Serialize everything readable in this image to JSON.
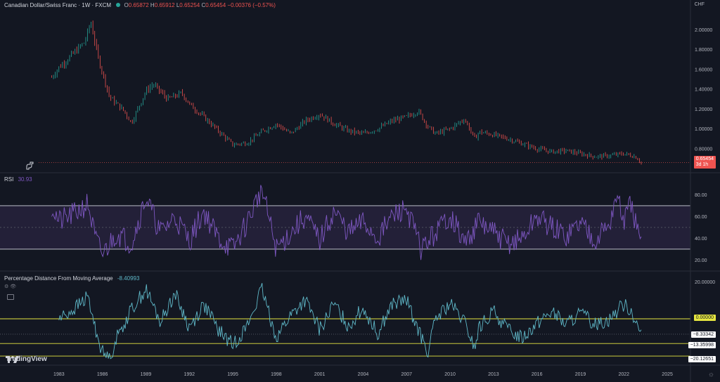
{
  "header": {
    "symbol": "Canadian Dollar/Swiss Franc · 1W · FXCM",
    "o_label": "O",
    "o": "0.65872",
    "h_label": "H",
    "h": "0.65912",
    "l_label": "L",
    "l": "0.65254",
    "c_label": "C",
    "c": "0.65454",
    "change": "−0.00376 (−0.57%)"
  },
  "price_axis": {
    "currency": "CHF",
    "ticks": [
      "2.00000",
      "1.80000",
      "1.60000",
      "1.40000",
      "1.20000",
      "1.00000",
      "0.80000"
    ]
  },
  "last_price": {
    "value": "0.65454",
    "countdown": "3d 1h"
  },
  "rsi": {
    "title": "RSI",
    "value": "30.93",
    "ticks": [
      "80.00",
      "60.00",
      "40.00",
      "20.00"
    ]
  },
  "pdma": {
    "title": "Percentage Distance From Moving Average",
    "value": "-8.40993",
    "ticks": [
      "20.00000",
      "0.00000"
    ],
    "tags": [
      "−8.33342",
      "−13.35998",
      "−20.12651"
    ]
  },
  "branding": {
    "logo": "TradingView"
  },
  "x_axis": {
    "years": [
      "1983",
      "1986",
      "1989",
      "1992",
      "1995",
      "1998",
      "2001",
      "2004",
      "2007",
      "2010",
      "2013",
      "2016",
      "2019",
      "2022",
      "2025"
    ]
  },
  "colors": {
    "background": "#131722",
    "up": "#26a69a",
    "down": "#ef5350",
    "rsi_line": "#7e57c2",
    "pdma_line": "#5fb8c8",
    "level_line": "#e6e640",
    "band": "#2a2440"
  },
  "chart_data": [
    {
      "type": "line",
      "title": "Canadian Dollar/Swiss Franc · 1W · FXCM",
      "ylabel": "CHF",
      "ylim": [
        0.6,
        2.2
      ],
      "x": [
        1982.5,
        1983,
        1984,
        1984.8,
        1985.2,
        1985.7,
        1986.5,
        1987.5,
        1988,
        1989,
        1989.5,
        1990.5,
        1991.5,
        1992,
        1993,
        1994,
        1995,
        1996,
        1997,
        1998,
        1999,
        2000,
        2001,
        2002,
        2003,
        2004,
        2005,
        2006,
        2007,
        2007.8,
        2008.5,
        2009,
        2010,
        2011,
        2011.7,
        2012,
        2013,
        2014,
        2015,
        2016,
        2017,
        2018,
        2019,
        2020,
        2021,
        2022,
        2022.8,
        2023.2
      ],
      "y": [
        1.52,
        1.62,
        1.76,
        1.88,
        2.08,
        1.72,
        1.32,
        1.18,
        1.06,
        1.38,
        1.45,
        1.3,
        1.36,
        1.25,
        1.12,
        0.98,
        0.84,
        0.86,
        0.97,
        1.05,
        0.95,
        1.08,
        1.15,
        1.05,
        0.98,
        0.95,
        1.0,
        1.08,
        1.12,
        1.18,
        1.02,
        0.95,
        1.0,
        1.1,
        0.9,
        0.97,
        0.94,
        0.9,
        0.85,
        0.8,
        0.77,
        0.78,
        0.75,
        0.72,
        0.73,
        0.75,
        0.72,
        0.66
      ]
    },
    {
      "type": "line",
      "title": "RSI",
      "ylim": [
        15,
        90
      ],
      "levels": [
        70,
        50,
        30
      ],
      "x": [
        1982.5,
        1983,
        1984,
        1985,
        1985.5,
        1986,
        1987,
        1988,
        1989,
        1990,
        1991,
        1992,
        1993,
        1994,
        1995,
        1996,
        1997,
        1998,
        1999,
        2000,
        2001,
        2002,
        2003,
        2004,
        2005,
        2006,
        2007,
        2008,
        2009,
        2010,
        2011,
        2012,
        2013,
        2014,
        2015,
        2016,
        2017,
        2018,
        2019,
        2020,
        2021,
        2021.5,
        2022,
        2022.5,
        2023.2
      ],
      "y": [
        70,
        55,
        62,
        72,
        40,
        25,
        45,
        35,
        78,
        45,
        60,
        38,
        65,
        40,
        30,
        55,
        86,
        30,
        45,
        60,
        38,
        65,
        45,
        55,
        40,
        60,
        68,
        30,
        45,
        62,
        35,
        55,
        45,
        35,
        40,
        60,
        50,
        42,
        55,
        40,
        52,
        80,
        55,
        72,
        31
      ]
    },
    {
      "type": "line",
      "title": "Percentage Distance From Moving Average",
      "ylim": [
        -22,
        22
      ],
      "levels": [
        0,
        -13.35998,
        -20.12651
      ],
      "x": [
        1983,
        1984,
        1985,
        1985.5,
        1986,
        1986.5,
        1987,
        1988,
        1989,
        1990,
        1991,
        1992,
        1993,
        1994,
        1995,
        1996,
        1997,
        1998,
        1999,
        2000,
        2001,
        2002,
        2003,
        2004,
        2005,
        2006,
        2007,
        2008,
        2008.5,
        2009,
        2010,
        2011,
        2011.7,
        2012,
        2013,
        2014,
        2015,
        2016,
        2017,
        2018,
        2019,
        2020,
        2021,
        2022,
        2022.5,
        2023.2
      ],
      "y": [
        0,
        5,
        12,
        -5,
        -18,
        -22,
        -10,
        5,
        16,
        -2,
        14,
        -5,
        8,
        -6,
        -14,
        -4,
        16,
        -10,
        2,
        10,
        -6,
        8,
        -4,
        6,
        -8,
        8,
        10,
        -10,
        -18,
        0,
        8,
        -2,
        -16,
        -5,
        4,
        -6,
        -10,
        -2,
        4,
        -3,
        3,
        -3,
        0,
        8,
        5,
        -8.4
      ]
    }
  ]
}
